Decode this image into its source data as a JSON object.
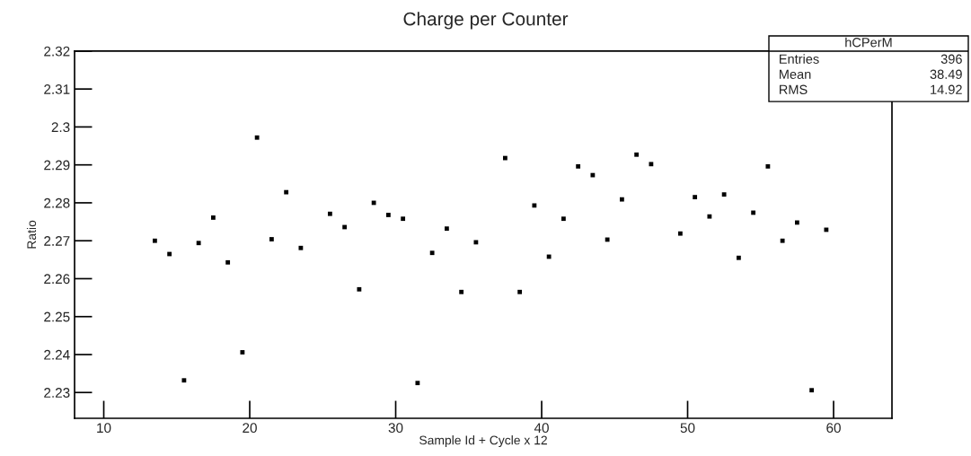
{
  "chart_data": {
    "type": "scatter",
    "title": "Charge per Counter",
    "xlabel": "Sample Id + Cycle x 12",
    "ylabel": "Ratio",
    "annotations": [
      "hCPerM",
      "Entries",
      "396",
      "Mean",
      "38.49",
      "RMS",
      "14.92"
    ],
    "x": [
      13.5,
      14.5,
      15.5,
      16.5,
      17.5,
      18.5,
      19.5,
      20.5,
      21.5,
      22.5,
      23.5,
      25.5,
      26.5,
      27.5,
      28.5,
      29.5,
      30.5,
      31.5,
      32.5,
      33.5,
      34.5,
      35.5,
      37.5,
      38.5,
      39.5,
      40.5,
      41.5,
      42.5,
      43.5,
      44.5,
      45.5,
      46.5,
      47.5,
      49.5,
      50.5,
      51.5,
      52.5,
      53.5,
      54.5,
      55.5,
      56.5,
      57.5,
      58.5,
      59.5
    ],
    "series": [
      {
        "color": "#000000",
        "values": [
          2.27,
          2.2665,
          2.2332,
          2.2694,
          2.2761,
          2.2643,
          2.2406,
          2.2972,
          2.2704,
          2.2828,
          2.2681,
          2.2771,
          2.2736,
          2.2572,
          2.28,
          2.2768,
          2.2758,
          2.2325,
          2.2668,
          2.2732,
          2.2565,
          2.2696,
          2.2918,
          2.2565,
          2.2793,
          2.2658,
          2.2758,
          2.2896,
          2.2873,
          2.2703,
          2.2809,
          2.2927,
          2.2902,
          2.2719,
          2.2815,
          2.2764,
          2.2822,
          2.2655,
          2.2774,
          2.2896,
          2.27,
          2.2748,
          2.2306,
          2.2729
        ]
      }
    ],
    "xlim": [
      8,
      64
    ],
    "xticks": [
      10,
      20,
      30,
      40,
      50,
      60
    ],
    "ylim": [
      2.2232,
      2.32
    ],
    "yticks": [
      2.23,
      2.24,
      2.25,
      2.26,
      2.27,
      2.28,
      2.29,
      2.3,
      2.31,
      2.32
    ],
    "grid": false,
    "legend": false,
    "marker": "square"
  }
}
